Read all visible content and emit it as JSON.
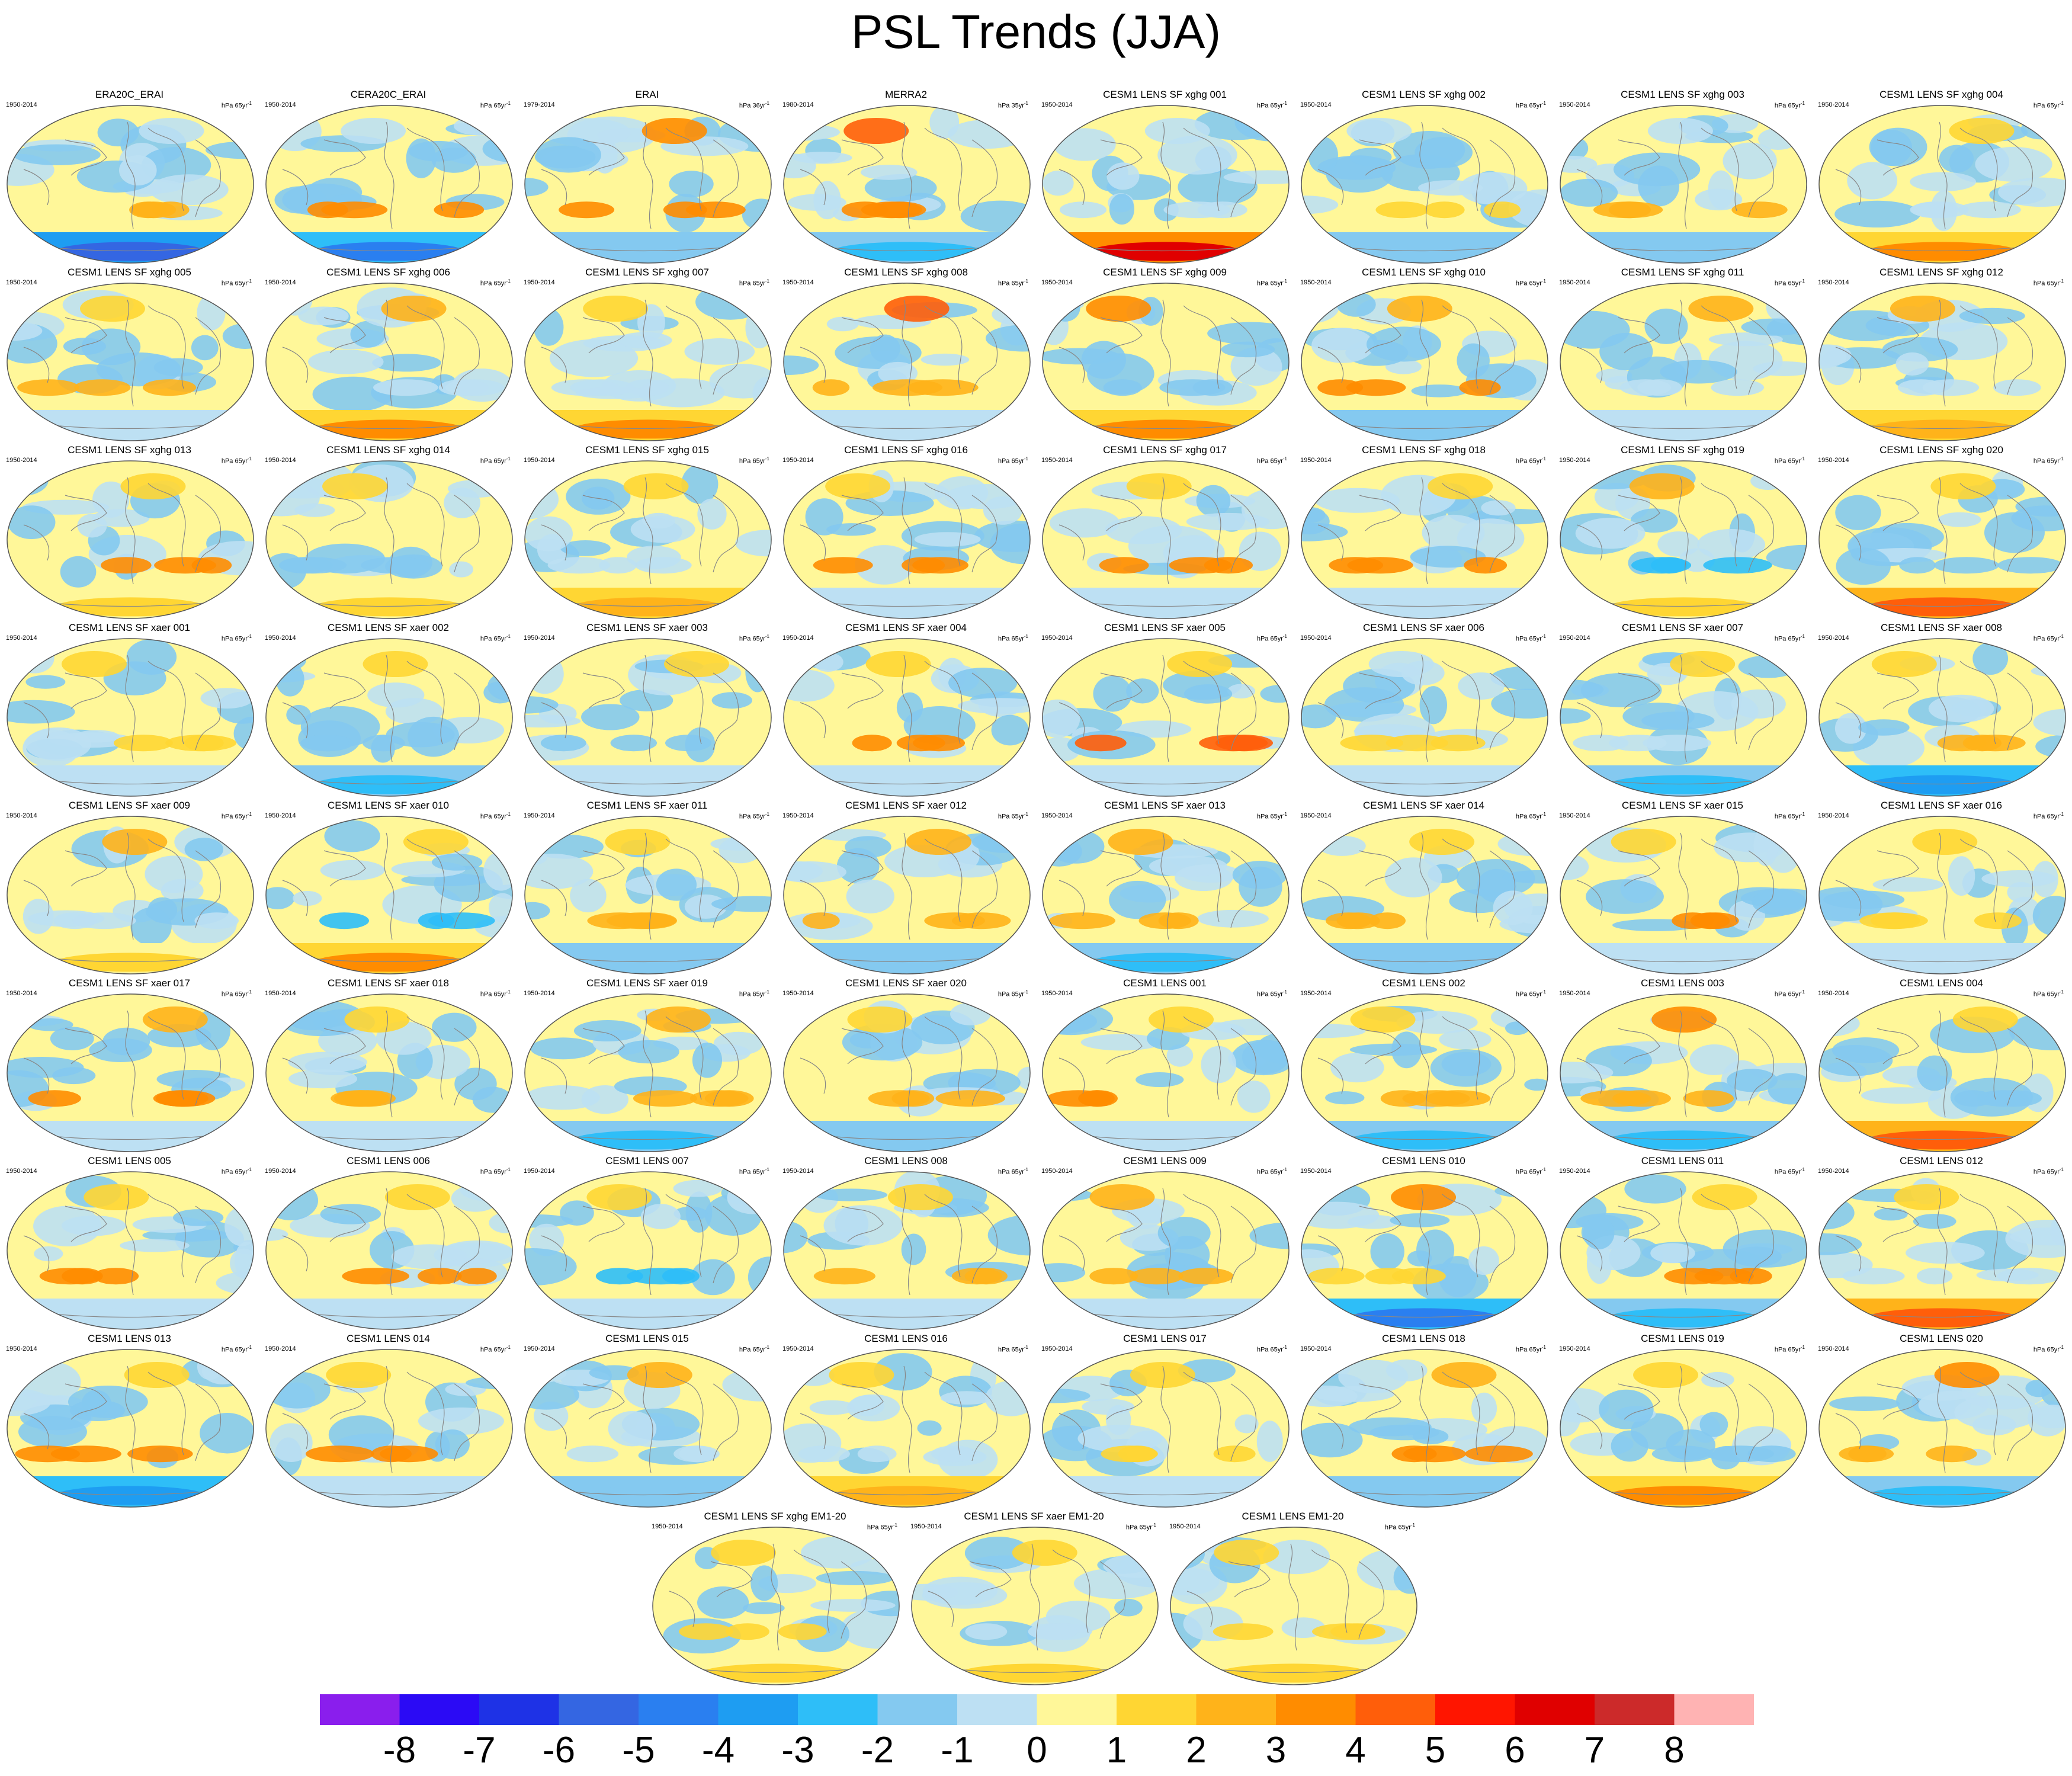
{
  "title": "PSL Trends (JJA)",
  "panels": [
    {
      "name": "ERA20C_ERAI",
      "years": "1950-2014",
      "units": "hPa 65yr",
      "pattern": {
        "south_band": -6,
        "mid_south": 2,
        "north": -1
      }
    },
    {
      "name": "CERA20C_ERAI",
      "years": "1950-2014",
      "units": "hPa 65yr",
      "pattern": {
        "south_band": -5,
        "mid_south": 3,
        "north": -1
      }
    },
    {
      "name": "ERAI",
      "years": "1979-2014",
      "units": "hPa 36yr",
      "pattern": {
        "south_band": -2,
        "mid_south": 3,
        "north": 3
      }
    },
    {
      "name": "MERRA2",
      "years": "1980-2014",
      "units": "hPa 35yr",
      "pattern": {
        "south_band": -3,
        "mid_south": 3,
        "north": 4
      }
    },
    {
      "name": "CESM1 LENS SF xghg 001",
      "years": "1950-2014",
      "units": "hPa 65yr",
      "pattern": {
        "south_band": 6,
        "mid_south": -1,
        "north": -1
      }
    },
    {
      "name": "CESM1 LENS SF xghg 002",
      "years": "1950-2014",
      "units": "hPa 65yr",
      "pattern": {
        "south_band": -2,
        "mid_south": 1,
        "north": -1
      }
    },
    {
      "name": "CESM1 LENS SF xghg 003",
      "years": "1950-2014",
      "units": "hPa 65yr",
      "pattern": {
        "south_band": -2,
        "mid_south": 2,
        "north": -1
      }
    },
    {
      "name": "CESM1 LENS SF xghg 004",
      "years": "1950-2014",
      "units": "hPa 65yr",
      "pattern": {
        "south_band": 3,
        "mid_south": -1,
        "north": 1
      }
    },
    {
      "name": "CESM1 LENS SF xghg 005",
      "years": "1950-2014",
      "units": "hPa 65yr",
      "pattern": {
        "south_band": -1,
        "mid_south": 2,
        "north": 1
      }
    },
    {
      "name": "CESM1 LENS SF xghg 006",
      "years": "1950-2014",
      "units": "hPa 65yr",
      "pattern": {
        "south_band": 3,
        "mid_south": -1,
        "north": 2
      }
    },
    {
      "name": "CESM1 LENS SF xghg 007",
      "years": "1950-2014",
      "units": "hPa 65yr",
      "pattern": {
        "south_band": 3,
        "mid_south": -1,
        "north": 1
      }
    },
    {
      "name": "CESM1 LENS SF xghg 008",
      "years": "1950-2014",
      "units": "hPa 65yr",
      "pattern": {
        "south_band": -1,
        "mid_south": 2,
        "north": 4
      }
    },
    {
      "name": "CESM1 LENS SF xghg 009",
      "years": "1950-2014",
      "units": "hPa 65yr",
      "pattern": {
        "south_band": 3,
        "mid_south": -2,
        "north": 3
      }
    },
    {
      "name": "CESM1 LENS SF xghg 010",
      "years": "1950-2014",
      "units": "hPa 65yr",
      "pattern": {
        "south_band": -2,
        "mid_south": 3,
        "north": 2
      }
    },
    {
      "name": "CESM1 LENS SF xghg 011",
      "years": "1950-2014",
      "units": "hPa 65yr",
      "pattern": {
        "south_band": -1,
        "mid_south": -1,
        "north": 2
      }
    },
    {
      "name": "CESM1 LENS SF xghg 012",
      "years": "1950-2014",
      "units": "hPa 65yr",
      "pattern": {
        "south_band": 2,
        "mid_south": -1,
        "north": 2
      }
    },
    {
      "name": "CESM1 LENS SF xghg 013",
      "years": "1950-2014",
      "units": "hPa 65yr",
      "pattern": {
        "south_band": 1,
        "mid_south": 3,
        "north": 1
      }
    },
    {
      "name": "CESM1 LENS SF xghg 014",
      "years": "1950-2014",
      "units": "hPa 65yr",
      "pattern": {
        "south_band": 1,
        "mid_south": -2,
        "north": 1
      }
    },
    {
      "name": "CESM1 LENS SF xghg 015",
      "years": "1950-2014",
      "units": "hPa 65yr",
      "pattern": {
        "south_band": 2,
        "mid_south": -1,
        "north": 1
      }
    },
    {
      "name": "CESM1 LENS SF xghg 016",
      "years": "1950-2014",
      "units": "hPa 65yr",
      "pattern": {
        "south_band": -1,
        "mid_south": 3,
        "north": 1
      }
    },
    {
      "name": "CESM1 LENS SF xghg 017",
      "years": "1950-2014",
      "units": "hPa 65yr",
      "pattern": {
        "south_band": -1,
        "mid_south": 3,
        "north": 1
      }
    },
    {
      "name": "CESM1 LENS SF xghg 018",
      "years": "1950-2014",
      "units": "hPa 65yr",
      "pattern": {
        "south_band": -1,
        "mid_south": 3,
        "north": 1
      }
    },
    {
      "name": "CESM1 LENS SF xghg 019",
      "years": "1950-2014",
      "units": "hPa 65yr",
      "pattern": {
        "south_band": 1,
        "mid_south": -3,
        "north": 2
      }
    },
    {
      "name": "CESM1 LENS SF xghg 020",
      "years": "1950-2014",
      "units": "hPa 65yr",
      "pattern": {
        "south_band": 4,
        "mid_south": -2,
        "north": 1
      }
    },
    {
      "name": "CESM1 LENS SF xaer 001",
      "years": "1950-2014",
      "units": "hPa 65yr",
      "pattern": {
        "south_band": -1,
        "mid_south": 1,
        "north": 1
      }
    },
    {
      "name": "CESM1 LENS SF xaer 002",
      "years": "1950-2014",
      "units": "hPa 65yr",
      "pattern": {
        "south_band": -3,
        "mid_south": -2,
        "north": 1
      }
    },
    {
      "name": "CESM1 LENS SF xaer 003",
      "years": "1950-2014",
      "units": "hPa 65yr",
      "pattern": {
        "south_band": -1,
        "mid_south": -2,
        "north": 1
      }
    },
    {
      "name": "CESM1 LENS SF xaer 004",
      "years": "1950-2014",
      "units": "hPa 65yr",
      "pattern": {
        "south_band": -1,
        "mid_south": 3,
        "north": 1
      }
    },
    {
      "name": "CESM1 LENS SF xaer 005",
      "years": "1950-2014",
      "units": "hPa 65yr",
      "pattern": {
        "south_band": -1,
        "mid_south": 4,
        "north": 1
      }
    },
    {
      "name": "CESM1 LENS SF xaer 006",
      "years": "1950-2014",
      "units": "hPa 65yr",
      "pattern": {
        "south_band": -1,
        "mid_south": 1,
        "north": -1
      }
    },
    {
      "name": "CESM1 LENS SF xaer 007",
      "years": "1950-2014",
      "units": "hPa 65yr",
      "pattern": {
        "south_band": -3,
        "mid_south": -1,
        "north": 1
      }
    },
    {
      "name": "CESM1 LENS SF xaer 008",
      "years": "1950-2014",
      "units": "hPa 65yr",
      "pattern": {
        "south_band": -4,
        "mid_south": 2,
        "north": 1
      }
    },
    {
      "name": "CESM1 LENS SF xaer 009",
      "years": "1950-2014",
      "units": "hPa 65yr",
      "pattern": {
        "south_band": 1,
        "mid_south": -1,
        "north": 2
      }
    },
    {
      "name": "CESM1 LENS SF xaer 010",
      "years": "1950-2014",
      "units": "hPa 65yr",
      "pattern": {
        "south_band": 3,
        "mid_south": -3,
        "north": 1
      }
    },
    {
      "name": "CESM1 LENS SF xaer 011",
      "years": "1950-2014",
      "units": "hPa 65yr",
      "pattern": {
        "south_band": -2,
        "mid_south": 2,
        "north": 1
      }
    },
    {
      "name": "CESM1 LENS SF xaer 012",
      "years": "1950-2014",
      "units": "hPa 65yr",
      "pattern": {
        "south_band": -2,
        "mid_south": 2,
        "north": 2
      }
    },
    {
      "name": "CESM1 LENS SF xaer 013",
      "years": "1950-2014",
      "units": "hPa 65yr",
      "pattern": {
        "south_band": -3,
        "mid_south": 2,
        "north": 2
      }
    },
    {
      "name": "CESM1 LENS SF xaer 014",
      "years": "1950-2014",
      "units": "hPa 65yr",
      "pattern": {
        "south_band": -2,
        "mid_south": 2,
        "north": 1
      }
    },
    {
      "name": "CESM1 LENS SF xaer 015",
      "years": "1950-2014",
      "units": "hPa 65yr",
      "pattern": {
        "south_band": -1,
        "mid_south": 3,
        "north": 1
      }
    },
    {
      "name": "CESM1 LENS SF xaer 016",
      "years": "1950-2014",
      "units": "hPa 65yr",
      "pattern": {
        "south_band": -1,
        "mid_south": 1,
        "north": 1
      }
    },
    {
      "name": "CESM1 LENS SF xaer 017",
      "years": "1950-2014",
      "units": "hPa 65yr",
      "pattern": {
        "south_band": -1,
        "mid_south": 3,
        "north": 2
      }
    },
    {
      "name": "CESM1 LENS SF xaer 018",
      "years": "1950-2014",
      "units": "hPa 65yr",
      "pattern": {
        "south_band": -1,
        "mid_south": 2,
        "north": 1
      }
    },
    {
      "name": "CESM1 LENS SF xaer 019",
      "years": "1950-2014",
      "units": "hPa 65yr",
      "pattern": {
        "south_band": -3,
        "mid_south": 2,
        "north": 2
      }
    },
    {
      "name": "CESM1 LENS SF xaer 020",
      "years": "1950-2014",
      "units": "hPa 65yr",
      "pattern": {
        "south_band": -2,
        "mid_south": 2,
        "north": 1
      }
    },
    {
      "name": "CESM1 LENS 001",
      "years": "1950-2014",
      "units": "hPa 65yr",
      "pattern": {
        "south_band": -1,
        "mid_south": 3,
        "north": 1
      }
    },
    {
      "name": "CESM1 LENS 002",
      "years": "1950-2014",
      "units": "hPa 65yr",
      "pattern": {
        "south_band": -3,
        "mid_south": 2,
        "north": 1
      }
    },
    {
      "name": "CESM1 LENS 003",
      "years": "1950-2014",
      "units": "hPa 65yr",
      "pattern": {
        "south_band": -3,
        "mid_south": 2,
        "north": 3
      }
    },
    {
      "name": "CESM1 LENS 004",
      "years": "1950-2014",
      "units": "hPa 65yr",
      "pattern": {
        "south_band": 4,
        "mid_south": -2,
        "north": 1
      }
    },
    {
      "name": "CESM1 LENS 005",
      "years": "1950-2014",
      "units": "hPa 65yr",
      "pattern": {
        "south_band": -1,
        "mid_south": 3,
        "north": 1
      }
    },
    {
      "name": "CESM1 LENS 006",
      "years": "1950-2014",
      "units": "hPa 65yr",
      "pattern": {
        "south_band": -1,
        "mid_south": 3,
        "north": 1
      }
    },
    {
      "name": "CESM1 LENS 007",
      "years": "1950-2014",
      "units": "hPa 65yr",
      "pattern": {
        "south_band": -1,
        "mid_south": -3,
        "north": 1
      }
    },
    {
      "name": "CESM1 LENS 008",
      "years": "1950-2014",
      "units": "hPa 65yr",
      "pattern": {
        "south_band": -1,
        "mid_south": 2,
        "north": 1
      }
    },
    {
      "name": "CESM1 LENS 009",
      "years": "1950-2014",
      "units": "hPa 65yr",
      "pattern": {
        "south_band": -1,
        "mid_south": 2,
        "north": 2
      }
    },
    {
      "name": "CESM1 LENS 010",
      "years": "1950-2014",
      "units": "hPa 65yr",
      "pattern": {
        "south_band": -5,
        "mid_south": 1,
        "north": 3
      }
    },
    {
      "name": "CESM1 LENS 011",
      "years": "1950-2014",
      "units": "hPa 65yr",
      "pattern": {
        "south_band": -3,
        "mid_south": 3,
        "north": 1
      }
    },
    {
      "name": "CESM1 LENS 012",
      "years": "1950-2014",
      "units": "hPa 65yr",
      "pattern": {
        "south_band": 4,
        "mid_south": -1,
        "north": 1
      }
    },
    {
      "name": "CESM1 LENS 013",
      "years": "1950-2014",
      "units": "hPa 65yr",
      "pattern": {
        "south_band": -4,
        "mid_south": 3,
        "north": 1
      }
    },
    {
      "name": "CESM1 LENS 014",
      "years": "1950-2014",
      "units": "hPa 65yr",
      "pattern": {
        "south_band": -1,
        "mid_south": 3,
        "north": 1
      }
    },
    {
      "name": "CESM1 LENS 015",
      "years": "1950-2014",
      "units": "hPa 65yr",
      "pattern": {
        "south_band": -2,
        "mid_south": -1,
        "north": 2
      }
    },
    {
      "name": "CESM1 LENS 016",
      "years": "1950-2014",
      "units": "hPa 65yr",
      "pattern": {
        "south_band": 2,
        "mid_south": -1,
        "north": 1
      }
    },
    {
      "name": "CESM1 LENS 017",
      "years": "1950-2014",
      "units": "hPa 65yr",
      "pattern": {
        "south_band": -1,
        "mid_south": 1,
        "north": 1
      }
    },
    {
      "name": "CESM1 LENS 018",
      "years": "1950-2014",
      "units": "hPa 65yr",
      "pattern": {
        "south_band": -2,
        "mid_south": 3,
        "north": 2
      }
    },
    {
      "name": "CESM1 LENS 019",
      "years": "1950-2014",
      "units": "hPa 65yr",
      "pattern": {
        "south_band": 3,
        "mid_south": -2,
        "north": 1
      }
    },
    {
      "name": "CESM1 LENS 020",
      "years": "1950-2014",
      "units": "hPa 65yr",
      "pattern": {
        "south_band": -3,
        "mid_south": 2,
        "north": 3
      }
    },
    {
      "name": "CESM1 LENS SF xghg EM1-20",
      "years": "1950-2014",
      "units": "hPa 65yr",
      "pattern": {
        "south_band": 1,
        "mid_south": 1,
        "north": 1
      }
    },
    {
      "name": "CESM1 LENS SF xaer EM1-20",
      "years": "1950-2014",
      "units": "hPa 65yr",
      "pattern": {
        "south_band": 1,
        "mid_south": -1,
        "north": 1
      }
    },
    {
      "name": "CESM1 LENS EM1-20",
      "years": "1950-2014",
      "units": "hPa 65yr",
      "pattern": {
        "south_band": 1,
        "mid_south": 1,
        "north": 1
      }
    }
  ],
  "colorbar": {
    "colors": [
      "#8a1eed",
      "#2b0af5",
      "#1e32e6",
      "#3466e2",
      "#2a7ff0",
      "#1e9df2",
      "#2ebef8",
      "#84c9f0",
      "#bde0f3",
      "#fff799",
      "#ffd633",
      "#ffb31a",
      "#ff8c00",
      "#ff5e0a",
      "#ff1500",
      "#e00000",
      "#cc2a2a",
      "#ffb3b3"
    ],
    "labels": [
      "-8",
      "-7",
      "-6",
      "-5",
      "-4",
      "-3",
      "-2",
      "-1",
      "0",
      "1",
      "2",
      "3",
      "4",
      "5",
      "6",
      "7",
      "8"
    ]
  },
  "superscript": "-1"
}
